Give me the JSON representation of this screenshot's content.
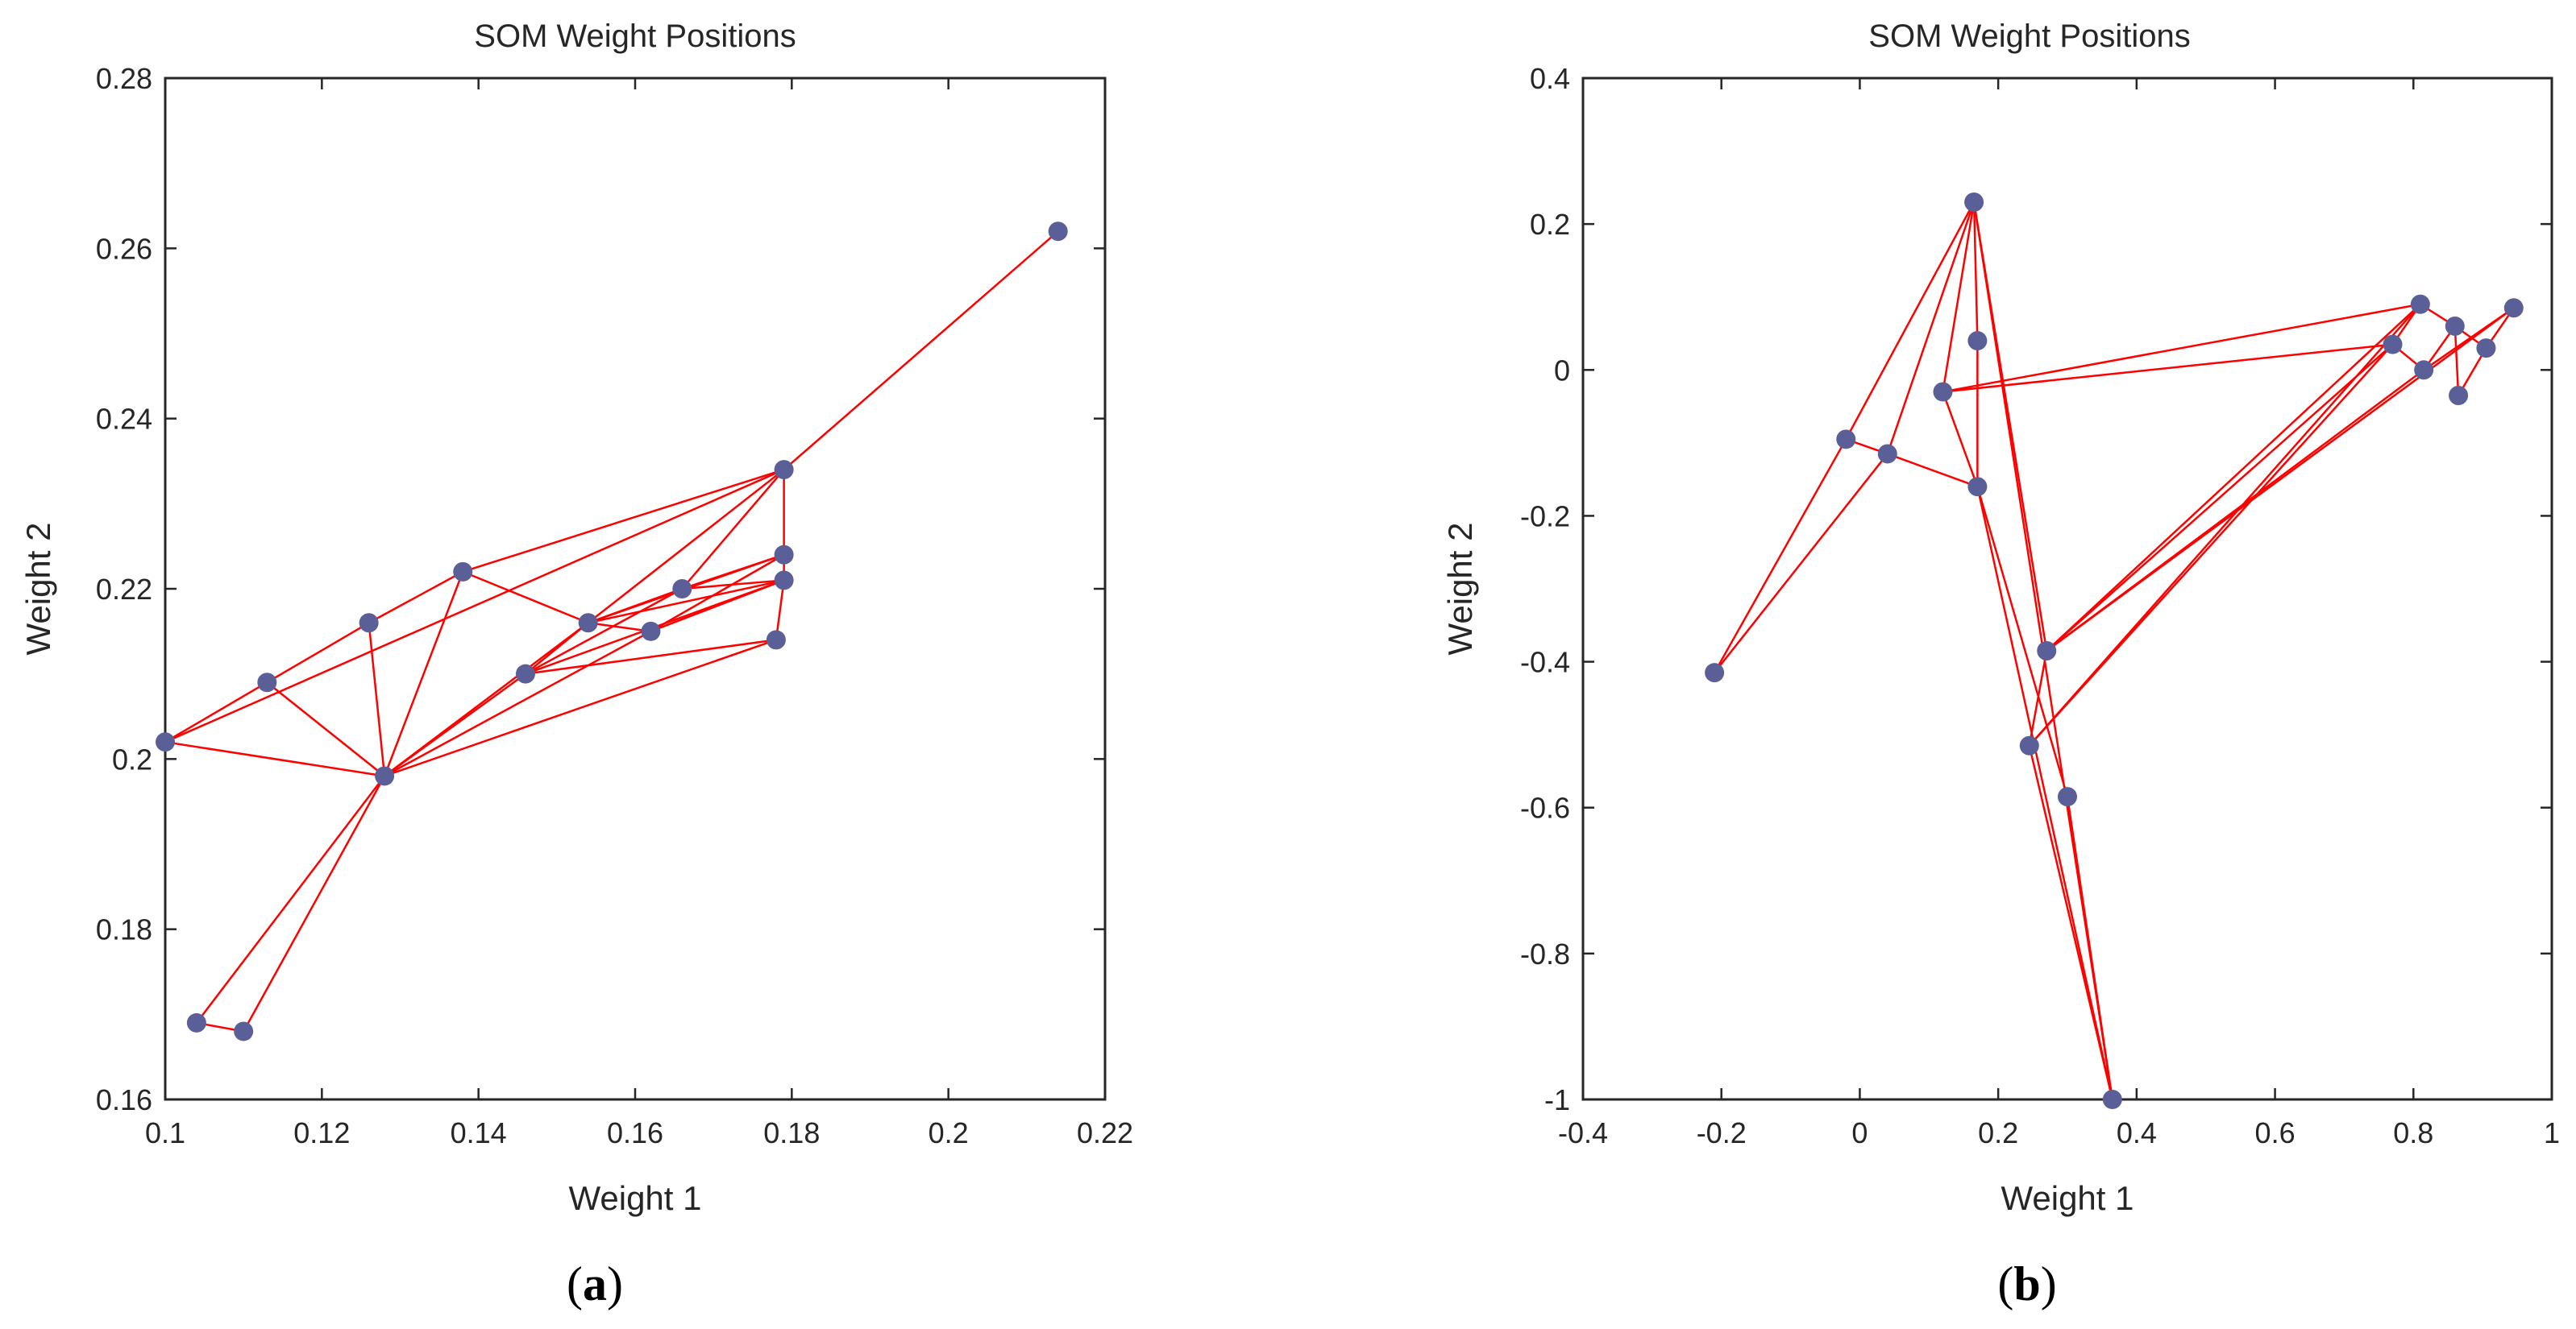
{
  "colors": {
    "edge": "#ff0000",
    "node": "#5b5f97",
    "axis": "#262626",
    "background": "#ffffff"
  },
  "chart_data": [
    {
      "type": "scatter",
      "panel": "a",
      "caption": {
        "open": "(",
        "letter": "a",
        "close": ")"
      },
      "title": "SOM Weight Positions",
      "xlabel": "Weight 1",
      "ylabel": "Weight 2",
      "xlim": [
        0.1,
        0.22
      ],
      "ylim": [
        0.16,
        0.28
      ],
      "xticks": [
        0.1,
        0.12,
        0.14,
        0.16,
        0.18,
        0.2,
        0.22
      ],
      "xtick_labels": [
        "0.1",
        "0.12",
        "0.14",
        "0.16",
        "0.18",
        "0.2",
        "0.22"
      ],
      "yticks": [
        0.16,
        0.18,
        0.2,
        0.22,
        0.24,
        0.26,
        0.28
      ],
      "ytick_labels": [
        "0.16",
        "0.18",
        "0.2",
        "0.22",
        "0.24",
        "0.26",
        "0.28"
      ],
      "grid": false,
      "nodes": [
        [
          0.1,
          0.202
        ],
        [
          0.113,
          0.209
        ],
        [
          0.126,
          0.216
        ],
        [
          0.138,
          0.222
        ],
        [
          0.128,
          0.198
        ],
        [
          0.146,
          0.21
        ],
        [
          0.154,
          0.216
        ],
        [
          0.162,
          0.215
        ],
        [
          0.166,
          0.22
        ],
        [
          0.179,
          0.221
        ],
        [
          0.179,
          0.224
        ],
        [
          0.179,
          0.234
        ],
        [
          0.178,
          0.214
        ],
        [
          0.104,
          0.169
        ],
        [
          0.11,
          0.168
        ],
        [
          0.214,
          0.262
        ]
      ],
      "edges": [
        [
          0,
          1
        ],
        [
          1,
          2
        ],
        [
          2,
          3
        ],
        [
          3,
          11
        ],
        [
          11,
          15
        ],
        [
          0,
          11
        ],
        [
          0,
          4
        ],
        [
          1,
          4
        ],
        [
          2,
          4
        ],
        [
          3,
          4
        ],
        [
          3,
          6
        ],
        [
          4,
          5
        ],
        [
          4,
          6
        ],
        [
          4,
          7
        ],
        [
          4,
          12
        ],
        [
          4,
          13
        ],
        [
          4,
          14
        ],
        [
          13,
          14
        ],
        [
          5,
          6
        ],
        [
          5,
          8
        ],
        [
          5,
          9
        ],
        [
          6,
          7
        ],
        [
          6,
          8
        ],
        [
          6,
          9
        ],
        [
          6,
          10
        ],
        [
          7,
          9
        ],
        [
          7,
          10
        ],
        [
          5,
          12
        ],
        [
          8,
          11
        ],
        [
          8,
          9
        ],
        [
          8,
          10
        ],
        [
          9,
          10
        ],
        [
          10,
          11
        ],
        [
          6,
          11
        ],
        [
          9,
          12
        ]
      ]
    },
    {
      "type": "scatter",
      "panel": "b",
      "caption": {
        "open": "(",
        "letter": "b",
        "close": ")"
      },
      "title": "SOM Weight Positions",
      "xlabel": "Weight 1",
      "ylabel": "Weight 2",
      "xlim": [
        -0.4,
        1
      ],
      "ylim": [
        -1,
        0.4
      ],
      "xticks": [
        -0.4,
        -0.2,
        0,
        0.2,
        0.4,
        0.6,
        0.8,
        1
      ],
      "xtick_labels": [
        "-0.4",
        "-0.2",
        "0",
        "0.2",
        "0.4",
        "0.6",
        "0.8",
        "1"
      ],
      "yticks": [
        -1,
        -0.8,
        -0.6,
        -0.4,
        -0.2,
        0,
        0.2,
        0.4
      ],
      "ytick_labels": [
        "-1",
        "-0.8",
        "-0.6",
        "-0.4",
        "-0.2",
        "0",
        "0.2",
        "0.4"
      ],
      "grid": false,
      "nodes": [
        [
          -0.21,
          -0.415
        ],
        [
          -0.02,
          -0.095
        ],
        [
          0.04,
          -0.115
        ],
        [
          0.12,
          -0.03
        ],
        [
          0.165,
          0.23
        ],
        [
          0.17,
          0.04
        ],
        [
          0.17,
          -0.16
        ],
        [
          0.27,
          -0.385
        ],
        [
          0.245,
          -0.515
        ],
        [
          0.3,
          -0.585
        ],
        [
          0.365,
          -1.0
        ],
        [
          0.77,
          0.035
        ],
        [
          0.81,
          0.09
        ],
        [
          0.815,
          0.0
        ],
        [
          0.86,
          0.06
        ],
        [
          0.865,
          -0.035
        ],
        [
          0.905,
          0.03
        ],
        [
          0.945,
          0.085
        ]
      ],
      "edges": [
        [
          0,
          1
        ],
        [
          0,
          2
        ],
        [
          1,
          2
        ],
        [
          1,
          4
        ],
        [
          2,
          4
        ],
        [
          2,
          6
        ],
        [
          3,
          4
        ],
        [
          3,
          6
        ],
        [
          3,
          12
        ],
        [
          3,
          11
        ],
        [
          4,
          5
        ],
        [
          4,
          7
        ],
        [
          4,
          10
        ],
        [
          5,
          6
        ],
        [
          6,
          9
        ],
        [
          6,
          10
        ],
        [
          7,
          8
        ],
        [
          7,
          12
        ],
        [
          7,
          11
        ],
        [
          7,
          13
        ],
        [
          7,
          17
        ],
        [
          8,
          11
        ],
        [
          8,
          12
        ],
        [
          11,
          12
        ],
        [
          11,
          13
        ],
        [
          12,
          14
        ],
        [
          13,
          14
        ],
        [
          13,
          17
        ],
        [
          14,
          15
        ],
        [
          14,
          16
        ],
        [
          15,
          16
        ],
        [
          16,
          17
        ],
        [
          9,
          10
        ],
        [
          8,
          10
        ]
      ]
    }
  ]
}
